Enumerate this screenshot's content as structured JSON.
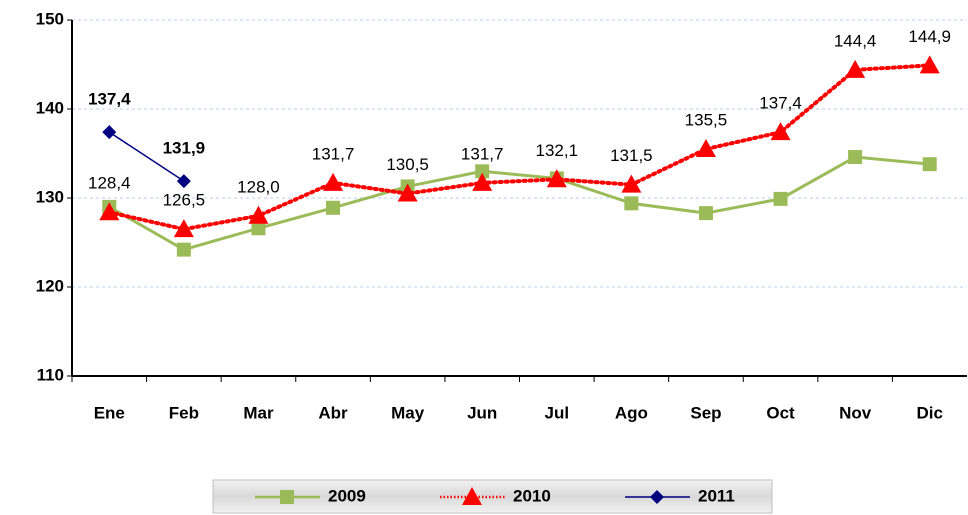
{
  "chart_data": {
    "type": "line",
    "categories": [
      "Ene",
      "Feb",
      "Mar",
      "Abr",
      "May",
      "Jun",
      "Jul",
      "Ago",
      "Sep",
      "Oct",
      "Nov",
      "Dic"
    ],
    "series": [
      {
        "name": "2009",
        "color": "#9bbb59",
        "values": [
          129.0,
          124.2,
          126.6,
          128.9,
          131.3,
          133.0,
          132.2,
          129.4,
          128.3,
          129.9,
          134.6,
          133.8
        ]
      },
      {
        "name": "2010",
        "color": "#ff0000",
        "values": [
          128.4,
          126.5,
          128.0,
          131.7,
          130.5,
          131.7,
          132.1,
          131.5,
          135.5,
          137.4,
          144.4,
          144.9
        ],
        "value_labels": [
          "128,4",
          "126,5",
          "128,0",
          "131,7",
          "130,5",
          "131,7",
          "132,1",
          "131,5",
          "135,5",
          "137,4",
          "144,4",
          "144,9"
        ]
      },
      {
        "name": "2011",
        "color": "#000080",
        "values": [
          137.4,
          131.9,
          null,
          null,
          null,
          null,
          null,
          null,
          null,
          null,
          null,
          null
        ],
        "value_labels": [
          "137,4",
          "131,9",
          null,
          null,
          null,
          null,
          null,
          null,
          null,
          null,
          null,
          null
        ]
      }
    ],
    "ylim": [
      110,
      150
    ],
    "yticks": [
      110,
      120,
      130,
      140,
      150
    ],
    "grid": true,
    "legend": "bottom"
  }
}
